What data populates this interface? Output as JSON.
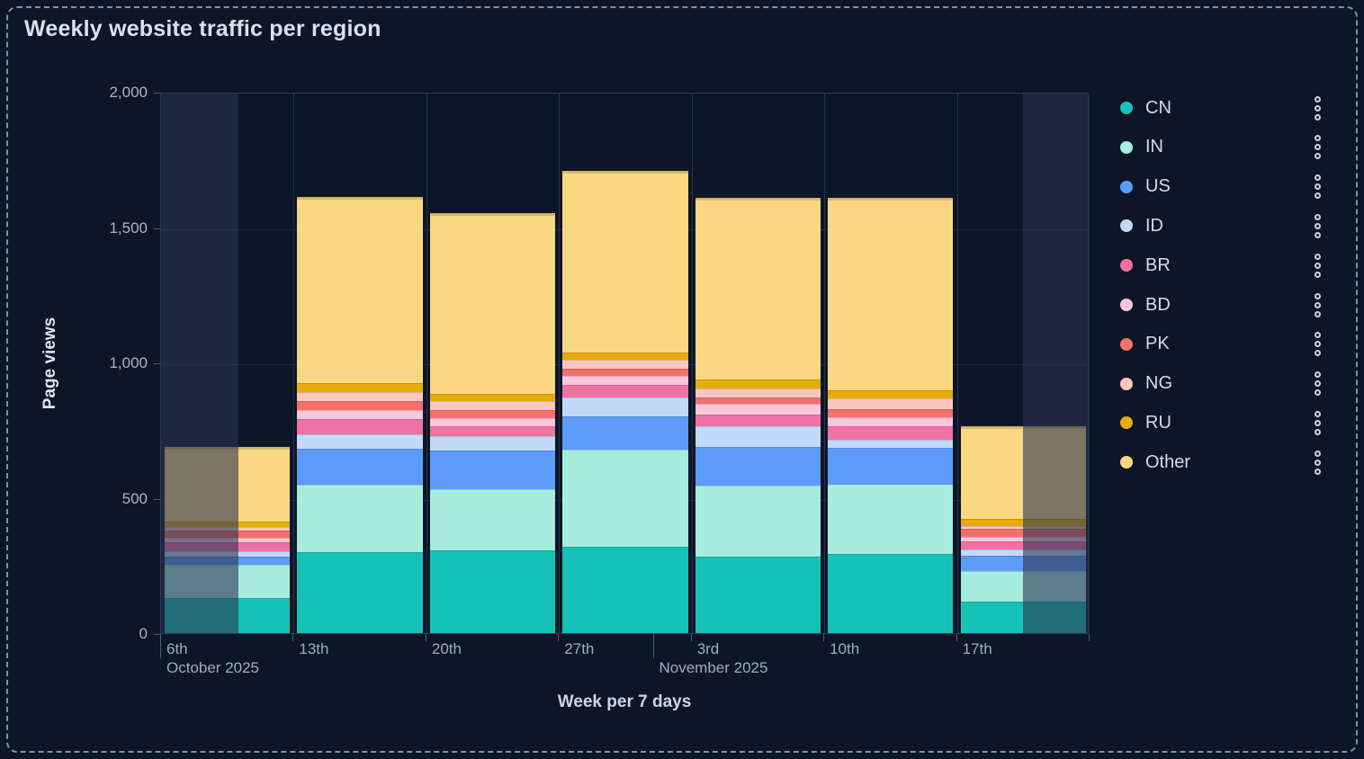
{
  "title": "Weekly website traffic per region",
  "chart_data": {
    "type": "bar",
    "stacked": true,
    "title": "Weekly website traffic per region",
    "xlabel": "Week per 7 days",
    "ylabel": "Page views",
    "ylim": [
      0,
      2000
    ],
    "yticks": [
      0,
      500,
      1000,
      1500,
      2000
    ],
    "ytick_labels": [
      "0",
      "500",
      "1,000",
      "1,500",
      "2,000"
    ],
    "categories": [
      "6th",
      "13th",
      "20th",
      "27th",
      "3rd",
      "10th",
      "17th"
    ],
    "month_labels": [
      {
        "text": "October 2025",
        "week_position": 0
      },
      {
        "text": "November 2025",
        "week_position": 3.714
      }
    ],
    "grid": true,
    "legend_position": "right",
    "out_of_range_zones": [
      {
        "start_week": 0,
        "end_week": 0.58
      },
      {
        "start_week": 6.5,
        "end_week": 7
      }
    ],
    "series": [
      {
        "name": "CN",
        "color": "#16c2b8",
        "values": [
          130,
          300,
          305,
          318,
          282,
          292,
          116
        ]
      },
      {
        "name": "IN",
        "color": "#a6ecdf",
        "values": [
          122,
          247,
          227,
          361,
          264,
          258,
          113
        ]
      },
      {
        "name": "US",
        "color": "#5d9bf8",
        "values": [
          31,
          135,
          142,
          122,
          141,
          134,
          56
        ]
      },
      {
        "name": "ID",
        "color": "#c3d9f9",
        "values": [
          20,
          53,
          53,
          68,
          77,
          30,
          24
        ]
      },
      {
        "name": "BR",
        "color": "#ef72a3",
        "values": [
          33,
          56,
          37,
          47,
          45,
          50,
          31
        ]
      },
      {
        "name": "BD",
        "color": "#f9c6da",
        "values": [
          16,
          33,
          30,
          33,
          38,
          33,
          17
        ]
      },
      {
        "name": "PK",
        "color": "#f3706c",
        "values": [
          27,
          34,
          30,
          29,
          25,
          30,
          27
        ]
      },
      {
        "name": "NG",
        "color": "#fbc7bd",
        "values": [
          12,
          33,
          33,
          33,
          33,
          40,
          12
        ]
      },
      {
        "name": "RU",
        "color": "#e5ad06",
        "values": [
          22,
          33,
          27,
          26,
          31,
          30,
          25
        ]
      },
      {
        "name": "Other",
        "color": "#fad782",
        "values": [
          275,
          688,
          668,
          671,
          671,
          711,
          345
        ]
      }
    ],
    "bar_totals": [
      688,
      1612,
      1552,
      1708,
      1607,
      1608,
      766
    ]
  },
  "legend": {
    "menu_icon": "kebab-vertical-dots"
  }
}
